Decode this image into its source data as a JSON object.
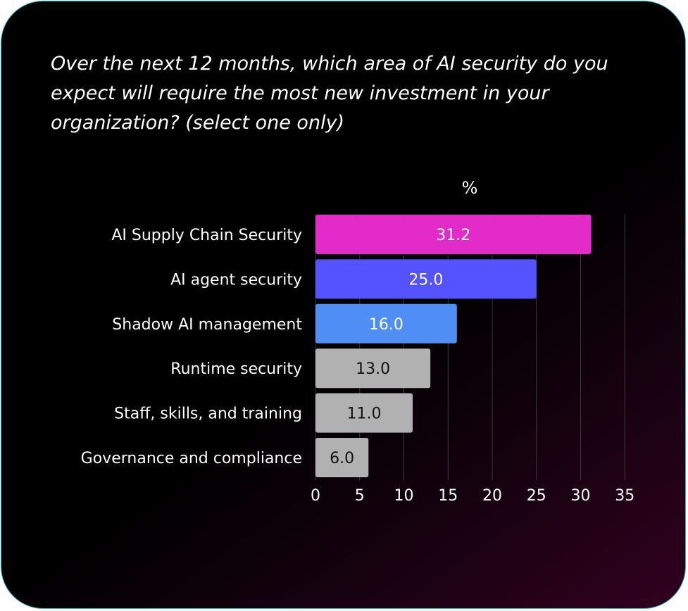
{
  "question": "Over the next 12 months, which area of AI security do you expect will require the most new investment in your organization? (select one only)",
  "chart_data": {
    "type": "bar",
    "orientation": "horizontal",
    "title": "Over the next 12 months, which area of AI security do you expect will require the most new investment in your organization? (select one only)",
    "unit_label": "%",
    "categories": [
      "AI Supply Chain Security",
      "AI agent security",
      "Shadow AI management",
      "Runtime security",
      "Staff, skills, and training",
      "Governance and compliance"
    ],
    "values": [
      31.2,
      25.0,
      16.0,
      13.0,
      11.0,
      6.0
    ],
    "value_labels": [
      "31.2",
      "25.0",
      "16.0",
      "13.0",
      "11.0",
      "6.0"
    ],
    "colors": [
      "#e22bc9",
      "#5552ff",
      "#4f8ff5",
      "#b1b1b1",
      "#b1b1b1",
      "#b1b1b1"
    ],
    "label_colors": [
      "#ffffff",
      "#ffffff",
      "#ffffff",
      "#111111",
      "#111111",
      "#111111"
    ],
    "xlim": [
      0,
      35
    ],
    "xticks": [
      0,
      5,
      10,
      15,
      20,
      25,
      30,
      35
    ],
    "grid": true,
    "legend": "none"
  }
}
